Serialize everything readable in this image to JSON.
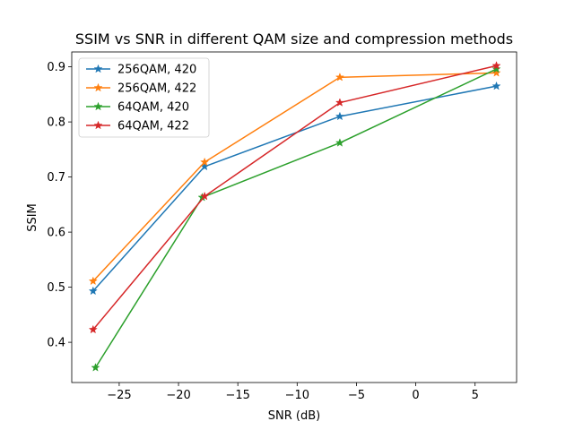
{
  "chart_data": {
    "type": "line",
    "title": "SSIM vs SNR in different QAM size and compression methods",
    "xlabel": "SNR (dB)",
    "ylabel": "SSIM",
    "xlim": [
      -29.0,
      8.5
    ],
    "ylim": [
      0.327,
      0.927
    ],
    "xticks": [
      -25,
      -20,
      -15,
      -10,
      -5,
      0,
      5
    ],
    "yticks": [
      0.4,
      0.5,
      0.6,
      0.7,
      0.8,
      0.9
    ],
    "xtick_labels": [
      "−25",
      "−20",
      "−15",
      "−10",
      "−5",
      "0",
      "5"
    ],
    "ytick_labels": [
      "0.4",
      "0.5",
      "0.6",
      "0.7",
      "0.8",
      "0.9"
    ],
    "grid": false,
    "legend_position": "top-left",
    "marker": "star",
    "series": [
      {
        "name": "256QAM, 420",
        "color": "#1f77b4",
        "x": [
          -27.2,
          -17.8,
          -6.4,
          6.8
        ],
        "y": [
          0.493,
          0.719,
          0.81,
          0.865
        ]
      },
      {
        "name": "256QAM, 422",
        "color": "#ff7f0e",
        "x": [
          -27.2,
          -17.8,
          -6.4,
          6.8
        ],
        "y": [
          0.511,
          0.727,
          0.881,
          0.889
        ]
      },
      {
        "name": "64QAM, 420",
        "color": "#2ca02c",
        "x": [
          -27.0,
          -18.0,
          -6.4,
          6.8
        ],
        "y": [
          0.354,
          0.663,
          0.762,
          0.896
        ]
      },
      {
        "name": "64QAM, 422",
        "color": "#d62728",
        "x": [
          -27.2,
          -17.8,
          -6.4,
          6.8
        ],
        "y": [
          0.423,
          0.665,
          0.835,
          0.902
        ]
      }
    ]
  }
}
